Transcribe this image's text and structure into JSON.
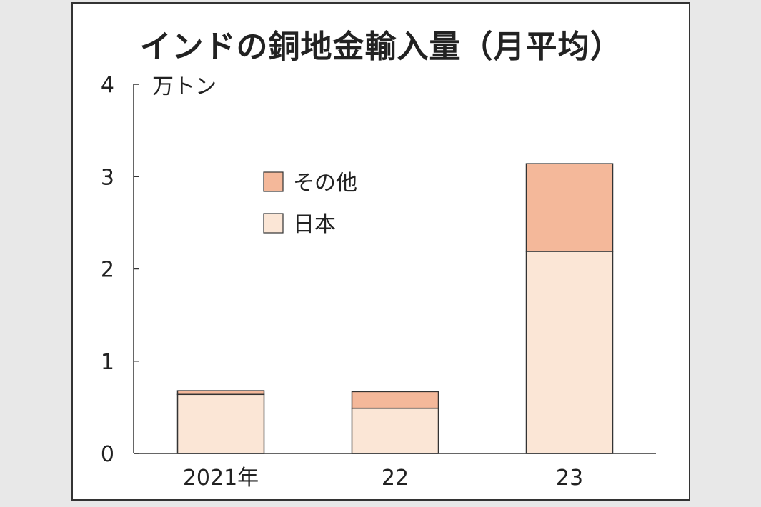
{
  "chart_data": {
    "type": "bar",
    "stacked": true,
    "title": "インドの銅地金輸入量（月平均）",
    "y_unit": "万トン",
    "categories": [
      "2021年",
      "22",
      "23"
    ],
    "series": [
      {
        "name": "日本",
        "values": [
          0.64,
          0.49,
          2.19
        ],
        "color": "#fbe6d6"
      },
      {
        "name": "その他",
        "values": [
          0.04,
          0.18,
          0.95
        ],
        "color": "#f4b89a"
      }
    ],
    "ylim": [
      0,
      4
    ],
    "y_ticks": [
      "0",
      "1",
      "2",
      "3",
      "4"
    ],
    "legend": {
      "placement": "upper-center",
      "order": [
        "その他",
        "日本"
      ]
    },
    "grid": false
  }
}
